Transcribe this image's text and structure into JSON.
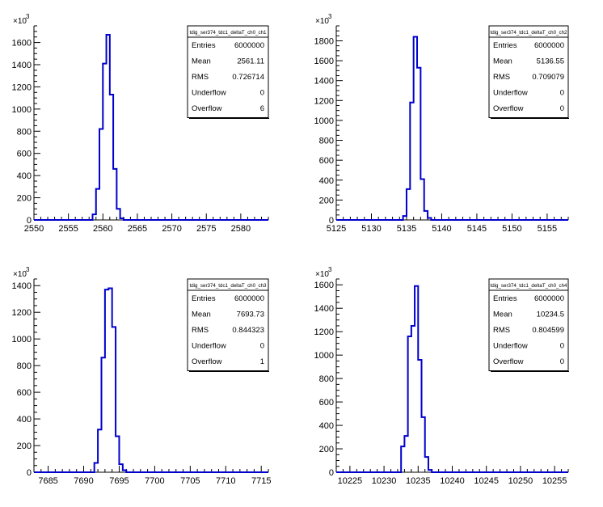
{
  "chart_data": [
    {
      "type": "histogram",
      "title": "tdig_ser374_tdc1_deltaT_ch0_ch1",
      "xlim": [
        2550,
        2584
      ],
      "ylim": [
        0,
        1750
      ],
      "xticks": [
        2550,
        2555,
        2560,
        2565,
        2570,
        2575,
        2580
      ],
      "yticks": [
        0,
        200,
        400,
        600,
        800,
        1000,
        1200,
        1400,
        1600
      ],
      "y_multiplier": "×10",
      "y_multiplier_exp": "3",
      "bin_edges": [
        2558,
        2558.5,
        2559,
        2559.5,
        2560,
        2560.5,
        2561,
        2561.5,
        2562,
        2562.5,
        2563,
        2563.5
      ],
      "counts": [
        0,
        50,
        280,
        820,
        1410,
        1670,
        1130,
        460,
        100,
        15,
        0
      ],
      "stats": {
        "Entries": "6000000",
        "Mean": "2561.11",
        "RMS": "0.726714",
        "Underflow": "0",
        "Overflow": "6"
      }
    },
    {
      "type": "histogram",
      "title": "tdig_ser374_tdc1_deltaT_ch0_ch2",
      "xlim": [
        5125,
        5158
      ],
      "ylim": [
        0,
        1950
      ],
      "xticks": [
        5125,
        5130,
        5135,
        5140,
        5145,
        5150,
        5155
      ],
      "yticks": [
        0,
        200,
        400,
        600,
        800,
        1000,
        1200,
        1400,
        1600,
        1800
      ],
      "y_multiplier": "×10",
      "y_multiplier_exp": "3",
      "bin_edges": [
        5134.5,
        5135,
        5135.5,
        5136,
        5136.5,
        5137,
        5137.5,
        5138,
        5138.5,
        5139
      ],
      "counts": [
        40,
        310,
        1180,
        1840,
        1530,
        410,
        90,
        20,
        0
      ],
      "stats": {
        "Entries": "6000000",
        "Mean": "5136.55",
        "RMS": "0.709079",
        "Underflow": "0",
        "Overflow": "0"
      }
    },
    {
      "type": "histogram",
      "title": "tdig_ser374_tdc1_deltaT_ch0_ch3",
      "xlim": [
        7683,
        7716
      ],
      "ylim": [
        0,
        1450
      ],
      "xticks": [
        7685,
        7690,
        7695,
        7700,
        7705,
        7710,
        7715
      ],
      "yticks": [
        0,
        200,
        400,
        600,
        800,
        1000,
        1200,
        1400
      ],
      "y_multiplier": "×10",
      "y_multiplier_exp": "3",
      "bin_edges": [
        7691.5,
        7692,
        7692.5,
        7693,
        7693.5,
        7694,
        7694.5,
        7695,
        7695.5,
        7696
      ],
      "counts": [
        70,
        320,
        860,
        1370,
        1380,
        1090,
        270,
        60,
        15
      ],
      "stats": {
        "Entries": "6000000",
        "Mean": "7693.73",
        "RMS": "0.844323",
        "Underflow": "0",
        "Overflow": "1"
      }
    },
    {
      "type": "histogram",
      "title": "tdig_ser374_tdc1_deltaT_ch0_ch4",
      "xlim": [
        10223,
        10257
      ],
      "ylim": [
        0,
        1650
      ],
      "xticks": [
        10225,
        10230,
        10235,
        10240,
        10245,
        10250,
        10255
      ],
      "yticks": [
        0,
        200,
        400,
        600,
        800,
        1000,
        1200,
        1400,
        1600
      ],
      "y_multiplier": "×10",
      "y_multiplier_exp": "3",
      "bin_edges": [
        10232.5,
        10233,
        10233.5,
        10234,
        10234.5,
        10235,
        10235.5,
        10236,
        10236.5,
        10237
      ],
      "counts": [
        220,
        310,
        1160,
        1250,
        1590,
        960,
        470,
        130,
        20
      ],
      "stats": {
        "Entries": "6000000",
        "Mean": "10234.5",
        "RMS": "0.804599",
        "Underflow": "0",
        "Overflow": "0"
      }
    }
  ]
}
